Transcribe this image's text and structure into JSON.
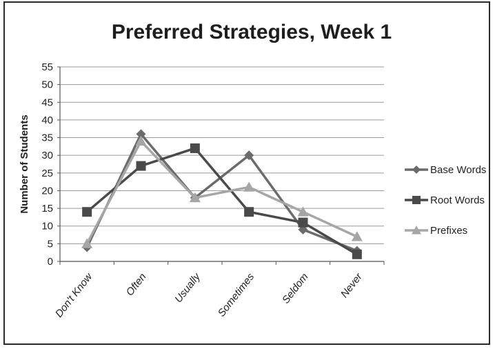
{
  "chart_data": {
    "type": "line",
    "title": "Preferred Strategies, Week 1",
    "ylabel": "Number of Students",
    "xlabel": "",
    "categories": [
      "Don't Know",
      "Often",
      "Usually",
      "Sometimes",
      "Seldom",
      "Never"
    ],
    "ylim": [
      0,
      55
    ],
    "yticks": [
      0,
      5,
      10,
      15,
      20,
      25,
      30,
      35,
      40,
      45,
      50,
      55
    ],
    "grid": true,
    "legend_position": "right",
    "series": [
      {
        "name": "Base Words",
        "values": [
          4,
          36,
          18,
          30,
          9,
          3
        ],
        "marker": "diamond",
        "color": "#6b6b6b"
      },
      {
        "name": "Root Words",
        "values": [
          14,
          27,
          32,
          14,
          11,
          2
        ],
        "marker": "square",
        "color": "#4a4a4a"
      },
      {
        "name": "Prefixes",
        "values": [
          5,
          34,
          18,
          21,
          14,
          7
        ],
        "marker": "triangle",
        "color": "#a6a6a6"
      }
    ]
  }
}
